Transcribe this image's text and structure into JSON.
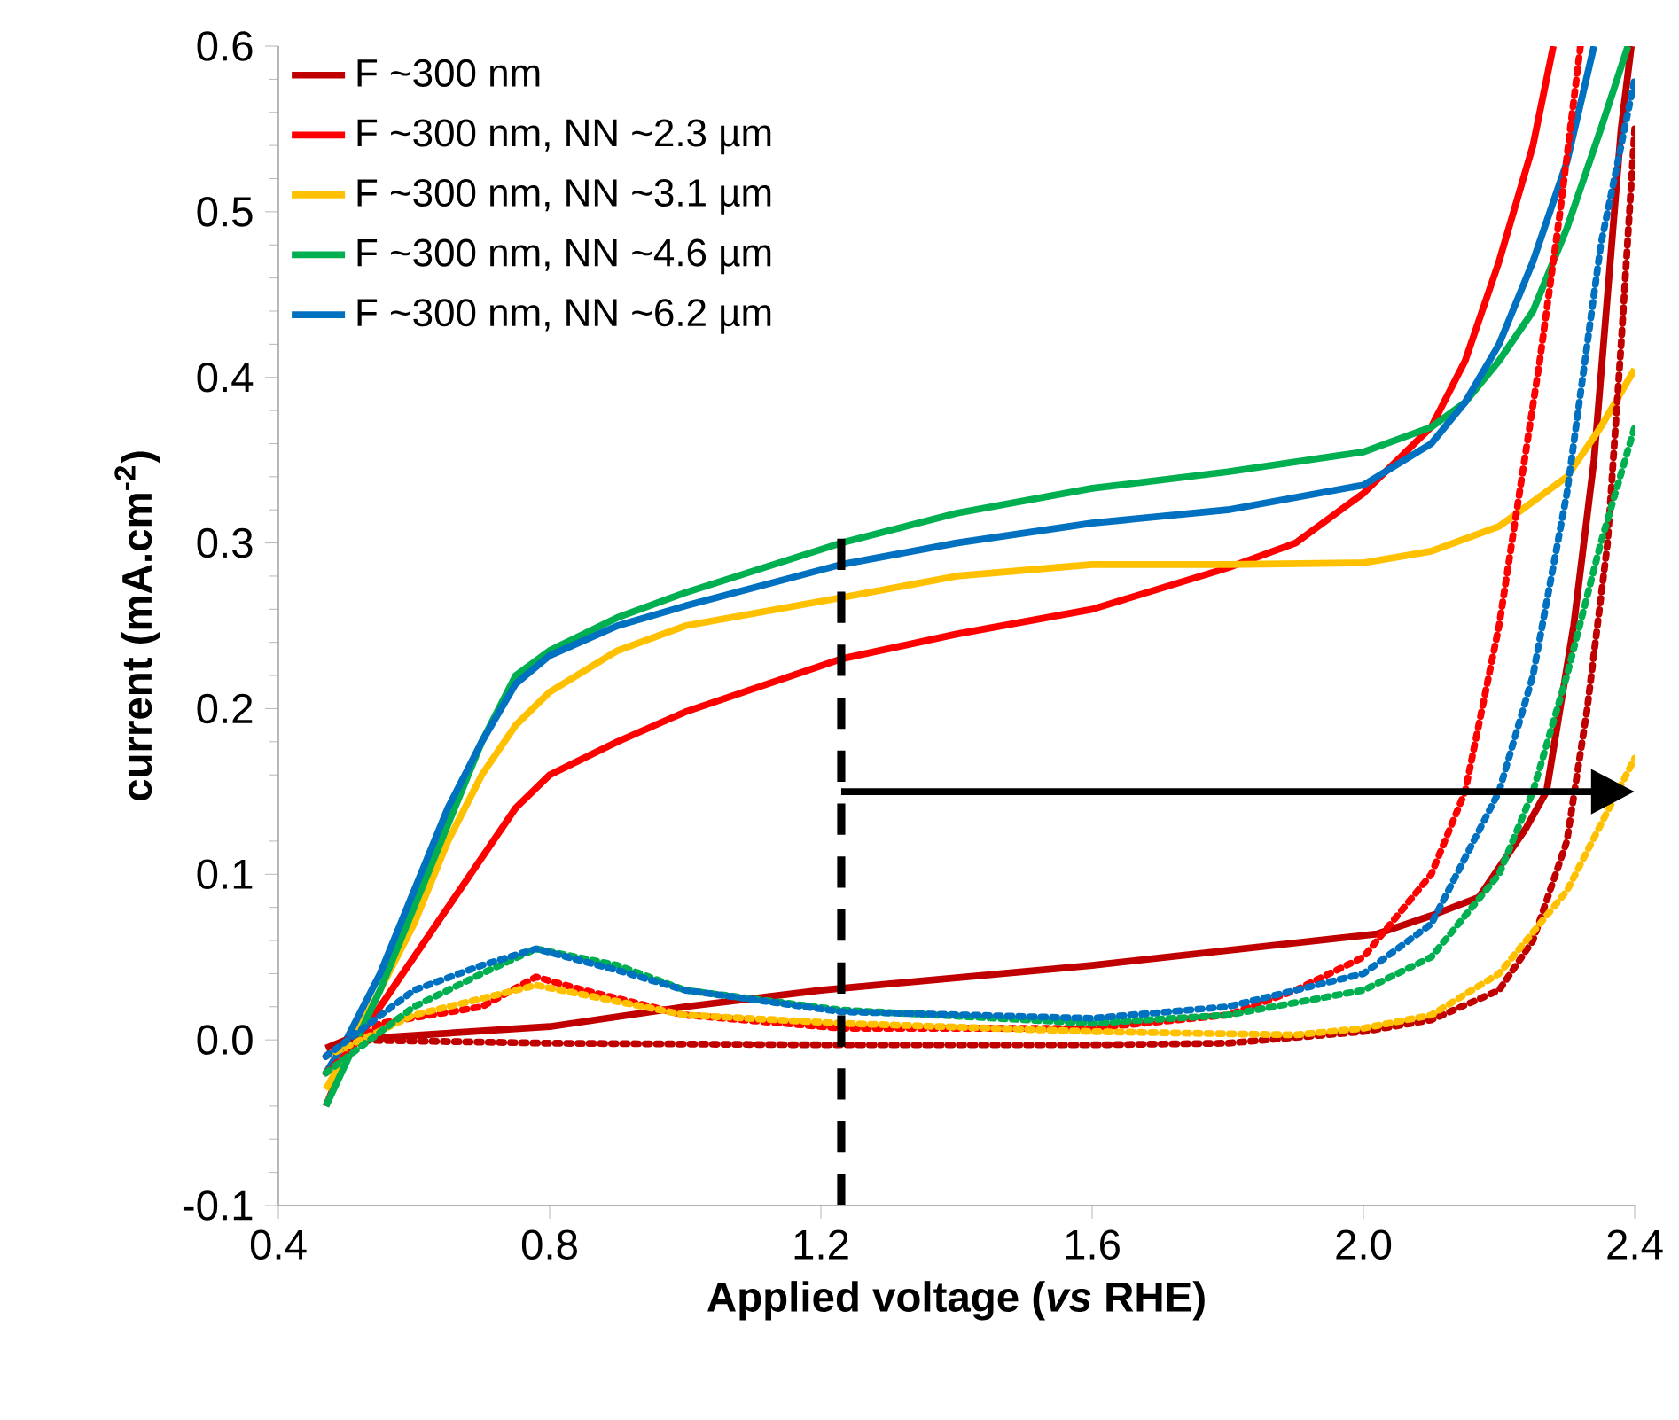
{
  "chart_data": {
    "type": "line",
    "xlabel": "Applied voltage (*vs* RHE)",
    "ylabel": "current (mA.cm$^{-2}$)",
    "xlim": [
      0.4,
      2.4
    ],
    "ylim": [
      -0.1,
      0.6
    ],
    "xticks": [
      0.4,
      0.8,
      1.2,
      1.6,
      {
        "value": 2.0,
        "label": "2.0"
      },
      2.4
    ],
    "yticks": [
      -0.1,
      {
        "value": 0,
        "label": "0.0"
      },
      0.1,
      0.2,
      0.3,
      0.4,
      0.5,
      0.6
    ],
    "grid": false,
    "legend": "top left",
    "marker": "none",
    "ref_lines": [
      {
        "axis": "x",
        "value": 1.23,
        "color": "#000000",
        "line_style": "dashed"
      }
    ],
    "series": [
      {
        "name": "F ~300 nm",
        "color": "#c00000",
        "line_style": "solid",
        "x": [
          0.47,
          0.5,
          0.8,
          1.0,
          1.2,
          1.6,
          2.02,
          2.1,
          2.17,
          2.24,
          2.27,
          2.31,
          2.34,
          2.36,
          2.38,
          2.395
        ],
        "values": [
          -0.005,
          0.0,
          0.008,
          0.02,
          0.03,
          0.045,
          0.064,
          0.075,
          0.086,
          0.128,
          0.15,
          0.25,
          0.35,
          0.45,
          0.55,
          0.6
        ]
      },
      {
        "name": "F ~300 nm, NN ~2.3 µm",
        "color": "#ff0000",
        "line_style": "solid",
        "x": [
          0.47,
          0.5,
          0.55,
          0.6,
          0.65,
          0.7,
          0.75,
          0.8,
          0.9,
          1.0,
          1.23,
          1.4,
          1.6,
          1.8,
          1.9,
          2.0,
          2.1,
          2.15,
          2.2,
          2.25,
          2.28
        ],
        "values": [
          -0.04,
          -0.01,
          0.02,
          0.05,
          0.08,
          0.11,
          0.14,
          0.16,
          0.18,
          0.198,
          0.23,
          0.245,
          0.26,
          0.285,
          0.3,
          0.33,
          0.37,
          0.41,
          0.47,
          0.54,
          0.6
        ]
      },
      {
        "name": "F ~300 nm, NN ~3.1 µm",
        "color": "#ffc000",
        "line_style": "solid",
        "x": [
          0.47,
          0.55,
          0.6,
          0.65,
          0.7,
          0.75,
          0.8,
          0.9,
          1.0,
          1.23,
          1.4,
          1.6,
          1.8,
          2.0,
          2.1,
          2.2,
          2.3,
          2.35,
          2.4
        ],
        "values": [
          -0.03,
          0.03,
          0.07,
          0.12,
          0.16,
          0.19,
          0.21,
          0.235,
          0.25,
          0.267,
          0.28,
          0.287,
          0.287,
          0.288,
          0.295,
          0.31,
          0.34,
          0.37,
          0.405
        ]
      },
      {
        "name": "F ~300 nm, NN ~4.6 µm",
        "color": "#00b050",
        "line_style": "solid",
        "x": [
          0.47,
          0.55,
          0.6,
          0.65,
          0.7,
          0.75,
          0.8,
          0.9,
          1.0,
          1.23,
          1.4,
          1.6,
          1.8,
          2.0,
          2.1,
          2.15,
          2.2,
          2.25,
          2.3,
          2.35,
          2.39
        ],
        "values": [
          -0.04,
          0.03,
          0.08,
          0.13,
          0.18,
          0.22,
          0.235,
          0.255,
          0.27,
          0.3,
          0.318,
          0.333,
          0.343,
          0.355,
          0.37,
          0.385,
          0.41,
          0.44,
          0.49,
          0.55,
          0.6
        ]
      },
      {
        "name": "F ~300 nm, NN ~6.2 µm",
        "color": "#0070c0",
        "line_style": "solid",
        "x": [
          0.47,
          0.5,
          0.55,
          0.6,
          0.65,
          0.7,
          0.75,
          0.8,
          0.9,
          1.0,
          1.23,
          1.4,
          1.6,
          1.8,
          2.0,
          2.1,
          2.15,
          2.2,
          2.25,
          2.3,
          2.34
        ],
        "values": [
          -0.02,
          0.0,
          0.04,
          0.09,
          0.14,
          0.18,
          0.215,
          0.232,
          0.25,
          0.262,
          0.287,
          0.3,
          0.312,
          0.32,
          0.335,
          0.36,
          0.385,
          0.42,
          0.47,
          0.53,
          0.6
        ]
      },
      {
        "color": "#c00000",
        "line_style": "dotted",
        "x": [
          0.47,
          0.5,
          0.8,
          1.2,
          1.6,
          1.8,
          2.0,
          2.1,
          2.2,
          2.25,
          2.3,
          2.33,
          2.36,
          2.38,
          2.4
        ],
        "values": [
          -0.01,
          0.0,
          -0.002,
          -0.003,
          -0.003,
          -0.002,
          0.005,
          0.012,
          0.03,
          0.06,
          0.12,
          0.2,
          0.3,
          0.42,
          0.55
        ]
      },
      {
        "color": "#ff0000",
        "line_style": "dotted",
        "x": [
          0.47,
          0.55,
          0.7,
          0.78,
          0.85,
          1.0,
          1.23,
          1.6,
          1.8,
          1.9,
          2.0,
          2.1,
          2.15,
          2.2,
          2.26,
          2.29,
          2.32
        ],
        "values": [
          -0.02,
          0.01,
          0.02,
          0.038,
          0.03,
          0.015,
          0.007,
          0.007,
          0.015,
          0.03,
          0.05,
          0.1,
          0.15,
          0.25,
          0.41,
          0.5,
          0.6
        ]
      },
      {
        "color": "#ffc000",
        "line_style": "dotted",
        "x": [
          0.47,
          0.6,
          0.78,
          1.0,
          1.23,
          1.6,
          1.9,
          2.0,
          2.1,
          2.2,
          2.3,
          2.4
        ],
        "values": [
          -0.01,
          0.015,
          0.033,
          0.015,
          0.01,
          0.005,
          0.003,
          0.007,
          0.015,
          0.04,
          0.09,
          0.17
        ]
      },
      {
        "color": "#00b050",
        "line_style": "dotted",
        "x": [
          0.47,
          0.6,
          0.7,
          0.78,
          0.9,
          1.0,
          1.23,
          1.6,
          1.8,
          2.0,
          2.1,
          2.2,
          2.25,
          2.3,
          2.35,
          2.4
        ],
        "values": [
          -0.02,
          0.02,
          0.04,
          0.055,
          0.045,
          0.03,
          0.018,
          0.01,
          0.015,
          0.03,
          0.05,
          0.1,
          0.15,
          0.22,
          0.3,
          0.37
        ]
      },
      {
        "color": "#0070c0",
        "line_style": "dotted",
        "x": [
          0.47,
          0.6,
          0.7,
          0.78,
          0.9,
          1.0,
          1.23,
          1.6,
          1.8,
          2.0,
          2.1,
          2.2,
          2.25,
          2.3,
          2.35,
          2.4
        ],
        "values": [
          -0.01,
          0.03,
          0.045,
          0.055,
          0.042,
          0.03,
          0.017,
          0.013,
          0.02,
          0.04,
          0.07,
          0.15,
          0.22,
          0.33,
          0.48,
          0.58
        ]
      }
    ]
  }
}
